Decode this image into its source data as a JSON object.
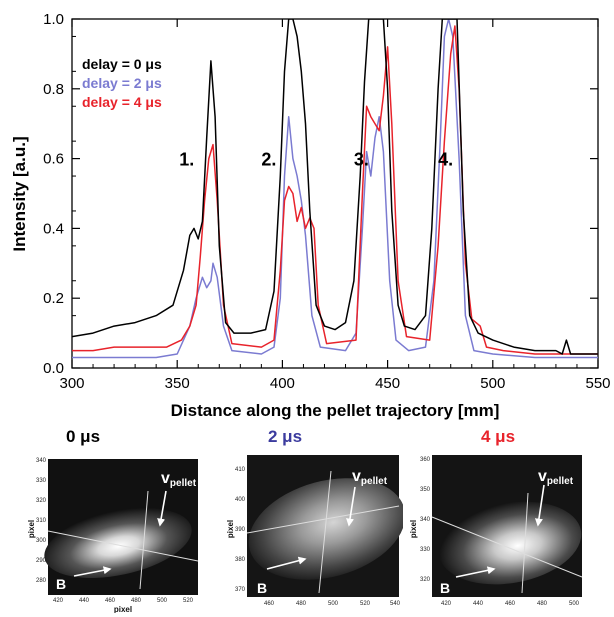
{
  "chart_data": {
    "type": "line",
    "title": "",
    "xlabel": "Distance along the pellet trajectory [mm]",
    "ylabel": "Intensity [a.u.]",
    "xlim": [
      300,
      550
    ],
    "ylim": [
      0,
      1.0
    ],
    "xticks": [
      "300",
      "350",
      "400",
      "450",
      "500",
      "550"
    ],
    "yticks": [
      "0.0",
      "0.2",
      "0.4",
      "0.6",
      "0.8",
      "1.0"
    ],
    "legend_position": "top-left",
    "peak_labels": [
      {
        "text": "1.",
        "x": 351,
        "y": 0.58
      },
      {
        "text": "2.",
        "x": 390,
        "y": 0.58
      },
      {
        "text": "3.",
        "x": 434,
        "y": 0.58
      },
      {
        "text": "4.",
        "x": 474,
        "y": 0.58
      }
    ],
    "series": [
      {
        "name": "delay = 0 μs",
        "color": "#000000",
        "points": [
          [
            300,
            0.09
          ],
          [
            310,
            0.1
          ],
          [
            320,
            0.12
          ],
          [
            330,
            0.13
          ],
          [
            340,
            0.15
          ],
          [
            348,
            0.18
          ],
          [
            353,
            0.28
          ],
          [
            356,
            0.38
          ],
          [
            358,
            0.4
          ],
          [
            360,
            0.37
          ],
          [
            362,
            0.42
          ],
          [
            364,
            0.66
          ],
          [
            366,
            0.88
          ],
          [
            368,
            0.72
          ],
          [
            370,
            0.35
          ],
          [
            373,
            0.13
          ],
          [
            377,
            0.1
          ],
          [
            385,
            0.1
          ],
          [
            392,
            0.11
          ],
          [
            396,
            0.22
          ],
          [
            399,
            0.55
          ],
          [
            401,
            0.85
          ],
          [
            403,
            1.0
          ],
          [
            405,
            1.0
          ],
          [
            407,
            0.95
          ],
          [
            409,
            0.85
          ],
          [
            411,
            0.7
          ],
          [
            413,
            0.45
          ],
          [
            416,
            0.18
          ],
          [
            420,
            0.12
          ],
          [
            425,
            0.11
          ],
          [
            430,
            0.13
          ],
          [
            434,
            0.25
          ],
          [
            437,
            0.55
          ],
          [
            439,
            0.82
          ],
          [
            441,
            1.0
          ],
          [
            448,
            1.0
          ],
          [
            450,
            0.8
          ],
          [
            452,
            0.45
          ],
          [
            455,
            0.18
          ],
          [
            458,
            0.12
          ],
          [
            463,
            0.11
          ],
          [
            468,
            0.15
          ],
          [
            471,
            0.4
          ],
          [
            474,
            0.8
          ],
          [
            476,
            1.0
          ],
          [
            483,
            1.0
          ],
          [
            486,
            0.45
          ],
          [
            489,
            0.15
          ],
          [
            493,
            0.1
          ],
          [
            500,
            0.08
          ],
          [
            510,
            0.06
          ],
          [
            520,
            0.05
          ],
          [
            530,
            0.05
          ],
          [
            533,
            0.04
          ],
          [
            535,
            0.08
          ],
          [
            537,
            0.04
          ],
          [
            545,
            0.04
          ],
          [
            550,
            0.04
          ]
        ]
      },
      {
        "name": "delay = 2 μs",
        "color": "#7b7bd1",
        "points": [
          [
            300,
            0.03
          ],
          [
            320,
            0.03
          ],
          [
            340,
            0.03
          ],
          [
            350,
            0.04
          ],
          [
            356,
            0.12
          ],
          [
            359,
            0.2
          ],
          [
            362,
            0.26
          ],
          [
            364,
            0.23
          ],
          [
            366,
            0.25
          ],
          [
            367,
            0.3
          ],
          [
            369,
            0.26
          ],
          [
            372,
            0.12
          ],
          [
            376,
            0.05
          ],
          [
            390,
            0.04
          ],
          [
            396,
            0.06
          ],
          [
            399,
            0.2
          ],
          [
            401,
            0.55
          ],
          [
            403,
            0.72
          ],
          [
            405,
            0.6
          ],
          [
            407,
            0.55
          ],
          [
            409,
            0.48
          ],
          [
            411,
            0.38
          ],
          [
            414,
            0.15
          ],
          [
            418,
            0.06
          ],
          [
            430,
            0.05
          ],
          [
            435,
            0.1
          ],
          [
            438,
            0.4
          ],
          [
            440,
            0.62
          ],
          [
            442,
            0.55
          ],
          [
            444,
            0.66
          ],
          [
            446,
            0.72
          ],
          [
            448,
            0.62
          ],
          [
            451,
            0.25
          ],
          [
            454,
            0.08
          ],
          [
            460,
            0.05
          ],
          [
            468,
            0.06
          ],
          [
            472,
            0.25
          ],
          [
            475,
            0.65
          ],
          [
            477,
            0.95
          ],
          [
            479,
            1.0
          ],
          [
            481,
            0.95
          ],
          [
            484,
            0.6
          ],
          [
            487,
            0.15
          ],
          [
            491,
            0.05
          ],
          [
            500,
            0.04
          ],
          [
            520,
            0.03
          ],
          [
            550,
            0.03
          ]
        ]
      },
      {
        "name": "delay = 4 μs",
        "color": "#e8232b",
        "points": [
          [
            300,
            0.05
          ],
          [
            310,
            0.05
          ],
          [
            320,
            0.06
          ],
          [
            330,
            0.06
          ],
          [
            345,
            0.06
          ],
          [
            352,
            0.08
          ],
          [
            356,
            0.12
          ],
          [
            359,
            0.18
          ],
          [
            361,
            0.32
          ],
          [
            363,
            0.48
          ],
          [
            365,
            0.6
          ],
          [
            367,
            0.64
          ],
          [
            369,
            0.48
          ],
          [
            372,
            0.18
          ],
          [
            376,
            0.07
          ],
          [
            390,
            0.06
          ],
          [
            396,
            0.08
          ],
          [
            399,
            0.28
          ],
          [
            401,
            0.48
          ],
          [
            403,
            0.52
          ],
          [
            405,
            0.5
          ],
          [
            407,
            0.42
          ],
          [
            409,
            0.46
          ],
          [
            411,
            0.4
          ],
          [
            413,
            0.43
          ],
          [
            415,
            0.4
          ],
          [
            417,
            0.18
          ],
          [
            421,
            0.07
          ],
          [
            435,
            0.08
          ],
          [
            438,
            0.5
          ],
          [
            440,
            0.75
          ],
          [
            442,
            0.72
          ],
          [
            444,
            0.7
          ],
          [
            446,
            0.68
          ],
          [
            448,
            0.78
          ],
          [
            450,
            0.92
          ],
          [
            452,
            0.7
          ],
          [
            455,
            0.25
          ],
          [
            459,
            0.09
          ],
          [
            470,
            0.08
          ],
          [
            474,
            0.35
          ],
          [
            477,
            0.65
          ],
          [
            480,
            0.9
          ],
          [
            482,
            0.98
          ],
          [
            484,
            0.8
          ],
          [
            487,
            0.3
          ],
          [
            490,
            0.14
          ],
          [
            494,
            0.12
          ],
          [
            497,
            0.06
          ],
          [
            505,
            0.05
          ],
          [
            520,
            0.04
          ],
          [
            550,
            0.04
          ]
        ]
      }
    ]
  },
  "panels": [
    {
      "delay_label": "0 μs",
      "delay_color": "#000000",
      "y_axis_label": "pixel",
      "x_axis_label": "pixel",
      "yticks": [
        "340",
        "330",
        "320",
        "310",
        "300",
        "290",
        "280"
      ],
      "xticks": [
        "420",
        "440",
        "460",
        "480",
        "500",
        "520"
      ],
      "v_label": "v",
      "v_subscript": "pellet",
      "b_label": "B"
    },
    {
      "delay_label": "2 μs",
      "delay_color": "#3b3b9e",
      "y_axis_label": "pixel",
      "x_axis_label": "",
      "yticks": [
        "410",
        "400",
        "390",
        "380",
        "370"
      ],
      "xticks": [
        "460",
        "480",
        "500",
        "520",
        "540"
      ],
      "v_label": "v",
      "v_subscript": "pellet",
      "b_label": "B"
    },
    {
      "delay_label": "4 μs",
      "delay_color": "#e8232b",
      "y_axis_label": "pixel",
      "x_axis_label": "",
      "yticks": [
        "360",
        "350",
        "340",
        "330",
        "320"
      ],
      "xticks": [
        "420",
        "440",
        "460",
        "480",
        "500"
      ],
      "v_label": "v",
      "v_subscript": "pellet",
      "b_label": "B"
    }
  ]
}
